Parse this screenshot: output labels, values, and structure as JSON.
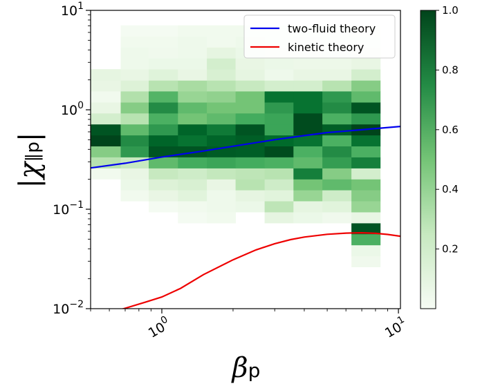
{
  "chart_data": {
    "type": "heatmap",
    "title": "",
    "xlabel": {
      "symbol": "β",
      "subscript": "p"
    },
    "ylabel": {
      "symbol": "|χ",
      "subscript": "∥p",
      "close": "|"
    },
    "x_scale": "log",
    "y_scale": "log",
    "xlim": [
      0.5,
      10.2
    ],
    "ylim": [
      0.01,
      10
    ],
    "x_ticks": [
      {
        "value": 1,
        "base": "10",
        "exp": "0"
      },
      {
        "value": 10,
        "base": "10",
        "exp": "1"
      }
    ],
    "y_ticks": [
      {
        "value": 0.01,
        "base": "10",
        "exp": "−2"
      },
      {
        "value": 0.1,
        "base": "10",
        "exp": "−1"
      },
      {
        "value": 1,
        "base": "10",
        "exp": "0"
      },
      {
        "value": 10,
        "base": "10",
        "exp": "1"
      }
    ],
    "x_bin_edges": [
      0.5,
      0.67,
      0.88,
      1.17,
      1.55,
      2.05,
      2.72,
      3.6,
      4.77,
      6.33,
      8.38
    ],
    "y_bin_edges": [
      0.0263,
      0.0339,
      0.0437,
      0.0564,
      0.0727,
      0.0937,
      0.121,
      0.156,
      0.201,
      0.259,
      0.334,
      0.431,
      0.556,
      0.717,
      0.924,
      1.19,
      1.54,
      1.98,
      2.56,
      3.3,
      4.25,
      5.48,
      7.07
    ],
    "cells": [
      [
        0.0,
        0.0,
        0.0,
        0.0,
        0.0,
        0.0,
        0.0,
        0.0,
        0.0,
        0.05
      ],
      [
        0.0,
        0.0,
        0.0,
        0.0,
        0.0,
        0.0,
        0.0,
        0.0,
        0.0,
        0.08
      ],
      [
        0.0,
        0.0,
        0.0,
        0.0,
        0.0,
        0.0,
        0.0,
        0.0,
        0.0,
        0.6
      ],
      [
        0.0,
        0.0,
        0.0,
        0.0,
        0.0,
        0.0,
        0.0,
        0.0,
        0.0,
        0.95
      ],
      [
        0.0,
        0.0,
        0.0,
        0.02,
        0.04,
        0.0,
        0.12,
        0.08,
        0.05,
        0.1
      ],
      [
        0.0,
        0.0,
        0.02,
        0.04,
        0.06,
        0.08,
        0.28,
        0.12,
        0.14,
        0.4
      ],
      [
        0.0,
        0.04,
        0.1,
        0.14,
        0.06,
        0.12,
        0.14,
        0.4,
        0.22,
        0.45
      ],
      [
        0.0,
        0.08,
        0.16,
        0.18,
        0.1,
        0.3,
        0.22,
        0.5,
        0.55,
        0.5
      ],
      [
        0.04,
        0.1,
        0.25,
        0.22,
        0.26,
        0.28,
        0.3,
        0.8,
        0.45,
        0.2
      ],
      [
        0.3,
        0.25,
        0.55,
        0.62,
        0.65,
        0.62,
        0.6,
        0.55,
        0.68,
        0.8
      ],
      [
        0.45,
        0.7,
        0.95,
        0.95,
        0.93,
        0.92,
        0.98,
        0.6,
        0.75,
        0.6
      ],
      [
        1.0,
        0.75,
        0.9,
        0.85,
        0.9,
        0.92,
        0.88,
        0.85,
        0.6,
        0.85
      ],
      [
        0.95,
        0.55,
        0.7,
        0.9,
        0.82,
        0.95,
        0.65,
        0.98,
        0.92,
        1.0
      ],
      [
        0.2,
        0.3,
        0.6,
        0.5,
        0.55,
        0.62,
        0.65,
        0.98,
        0.6,
        0.7
      ],
      [
        0.1,
        0.45,
        0.75,
        0.55,
        0.5,
        0.5,
        0.7,
        0.85,
        0.75,
        0.95
      ],
      [
        0.04,
        0.32,
        0.58,
        0.4,
        0.42,
        0.5,
        0.85,
        0.85,
        0.7,
        0.55
      ],
      [
        0.1,
        0.16,
        0.3,
        0.35,
        0.3,
        0.25,
        0.2,
        0.2,
        0.3,
        0.45
      ],
      [
        0.12,
        0.1,
        0.15,
        0.1,
        0.18,
        0.12,
        0.06,
        0.1,
        0.1,
        0.2
      ],
      [
        0.0,
        0.06,
        0.08,
        0.08,
        0.2,
        0.1,
        0.08,
        0.07,
        0.07,
        0.1
      ],
      [
        0.0,
        0.06,
        0.05,
        0.06,
        0.12,
        0.08,
        0.06,
        0.06,
        0.08,
        0.06
      ],
      [
        0.0,
        0.04,
        0.04,
        0.06,
        0.04,
        0.06,
        0.04,
        0.05,
        0.04,
        0.04
      ],
      [
        0.0,
        0.02,
        0.02,
        0.04,
        0.04,
        0.04,
        0.04,
        0.04,
        0.04,
        0.02
      ]
    ],
    "series": [
      {
        "name": "two-fluid theory",
        "color": "#0000ee",
        "x": [
          0.5,
          0.7,
          1.0,
          1.5,
          2.0,
          3.0,
          4.0,
          5.0,
          7.0,
          10.2
        ],
        "y": [
          0.26,
          0.29,
          0.335,
          0.385,
          0.43,
          0.5,
          0.55,
          0.59,
          0.63,
          0.68
        ]
      },
      {
        "name": "kinetic theory",
        "color": "#ee0000",
        "x": [
          0.5,
          0.62,
          0.7,
          0.85,
          1.0,
          1.2,
          1.5,
          2.0,
          2.5,
          3.0,
          3.5,
          4.0,
          5.0,
          6.0,
          7.0,
          8.0,
          9.0,
          10.2
        ],
        "y": [
          0.0085,
          0.0093,
          0.0101,
          0.0116,
          0.0131,
          0.016,
          0.022,
          0.031,
          0.039,
          0.045,
          0.0495,
          0.0525,
          0.056,
          0.0575,
          0.058,
          0.0572,
          0.0558,
          0.0535
        ]
      }
    ],
    "legend": {
      "position": "top-right"
    },
    "colorbar": {
      "colormap": "Greens",
      "range": [
        0,
        1.0
      ],
      "ticks": [
        0.2,
        0.4,
        0.6,
        0.8,
        1.0
      ],
      "tick_labels": [
        "0.2",
        "0.4",
        "0.6",
        "0.8",
        "1.0"
      ]
    },
    "grid": false
  }
}
